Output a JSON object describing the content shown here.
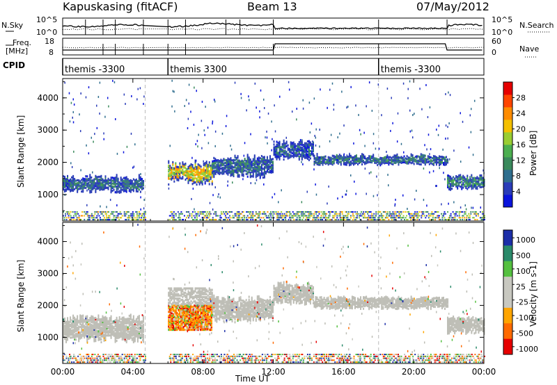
{
  "header": {
    "station": "Kapuskasing (fitACF)",
    "beam": "Beam 13",
    "date": "07/May/2012"
  },
  "noise_panel": {
    "left_label": "N.Sky",
    "left_ticks": [
      "10^5",
      "10^0"
    ],
    "right_label": "N.Search",
    "right_ticks": [
      "10^5",
      "10^0"
    ]
  },
  "freq_panel": {
    "left_label_1": "Freq.",
    "left_label_2": "[MHz]",
    "left_ticks": [
      "18",
      "8"
    ],
    "right_label": "Nave",
    "right_ticks": [
      "60",
      "0"
    ]
  },
  "cpid": {
    "label": "CPID",
    "segments": [
      {
        "name": "themis -3300",
        "start_hour": 0.0
      },
      {
        "name": "themis 3300",
        "start_hour": 6.0
      },
      {
        "name": "themis -3300",
        "start_hour": 18.0
      }
    ]
  },
  "colors": {
    "power_scale": [
      "#0a14dc",
      "#2a3cb8",
      "#2f6e8e",
      "#3a8a5c",
      "#4caf50",
      "#9acd32",
      "#f4c000",
      "#ff8c00",
      "#ff4500",
      "#e60000"
    ],
    "velocity_scale": [
      "#e60000",
      "#ff6a00",
      "#ffa500",
      "#c8c8c0",
      "#c8c8c0",
      "#55c040",
      "#2a8a6a",
      "#1c2ea8"
    ],
    "ground_scatter": "#bdbdb5"
  },
  "chart_data": [
    {
      "type": "heatmap",
      "title": "Power",
      "xlabel": "Time UT",
      "ylabel": "Slant Range [km]",
      "xlim": [
        0,
        24
      ],
      "ylim": [
        180,
        4600
      ],
      "x_tick_labels": [
        "00:00",
        "04:00",
        "08:00",
        "12:00",
        "16:00",
        "20:00",
        "00:00"
      ],
      "y_tick_labels": [
        "1000",
        "2000",
        "3000",
        "4000"
      ],
      "colorbar": {
        "label": "Power [dB]",
        "range": [
          0,
          32
        ],
        "ticks": [
          "4",
          "8",
          "12",
          "16",
          "20",
          "24",
          "28"
        ]
      },
      "data_gaps_hours": [
        [
          4.7,
          6.0
        ]
      ],
      "scatter_regions": [
        {
          "start_hour": 0.0,
          "end_hour": 4.6,
          "range_lo_km": 900,
          "range_hi_km": 1700,
          "typical_power_db": 8
        },
        {
          "start_hour": 6.0,
          "end_hour": 8.5,
          "range_lo_km": 1100,
          "range_hi_km": 2200,
          "typical_power_db": 20
        },
        {
          "start_hour": 8.5,
          "end_hour": 12.0,
          "range_lo_km": 1300,
          "range_hi_km": 2400,
          "typical_power_db": 8
        },
        {
          "start_hour": 12.0,
          "end_hour": 14.3,
          "range_lo_km": 1900,
          "range_hi_km": 2800,
          "typical_power_db": 6
        },
        {
          "start_hour": 14.3,
          "end_hour": 21.9,
          "range_lo_km": 1800,
          "range_hi_km": 2300,
          "typical_power_db": 8
        },
        {
          "start_hour": 21.9,
          "end_hour": 24.0,
          "range_lo_km": 1000,
          "range_hi_km": 1700,
          "typical_power_db": 10
        }
      ]
    },
    {
      "type": "heatmap",
      "title": "Velocity",
      "xlabel": "Time UT",
      "ylabel": "Slant Range [km]",
      "xlim": [
        0,
        24
      ],
      "ylim": [
        180,
        4600
      ],
      "x_tick_labels": [
        "00:00",
        "04:00",
        "08:00",
        "12:00",
        "16:00",
        "20:00",
        "00:00"
      ],
      "y_tick_labels": [
        "1000",
        "2000",
        "3000",
        "4000"
      ],
      "colorbar": {
        "label": "Velocity [m s-1]",
        "ticks": [
          "1000",
          "500",
          "100",
          "25",
          "-25",
          "-100",
          "-500",
          "-1000"
        ]
      },
      "data_gaps_hours": [
        [
          4.7,
          6.0
        ]
      ],
      "ground_scatter_regions": [
        {
          "start_hour": 0.0,
          "end_hour": 4.6,
          "range_lo_km": 700,
          "range_hi_km": 1800
        },
        {
          "start_hour": 8.5,
          "end_hour": 12.0,
          "range_lo_km": 1300,
          "range_hi_km": 2400
        },
        {
          "start_hour": 12.0,
          "end_hour": 14.3,
          "range_lo_km": 1900,
          "range_hi_km": 2800
        },
        {
          "start_hour": 14.3,
          "end_hour": 21.9,
          "range_lo_km": 1800,
          "range_hi_km": 2300
        },
        {
          "start_hour": 21.9,
          "end_hour": 24.0,
          "range_lo_km": 1000,
          "range_hi_km": 1700
        }
      ],
      "ionospheric_scatter_regions": [
        {
          "start_hour": 6.0,
          "end_hour": 8.5,
          "range_lo_km": 1200,
          "range_hi_km": 2000,
          "typical_velocity": -200
        }
      ]
    }
  ]
}
